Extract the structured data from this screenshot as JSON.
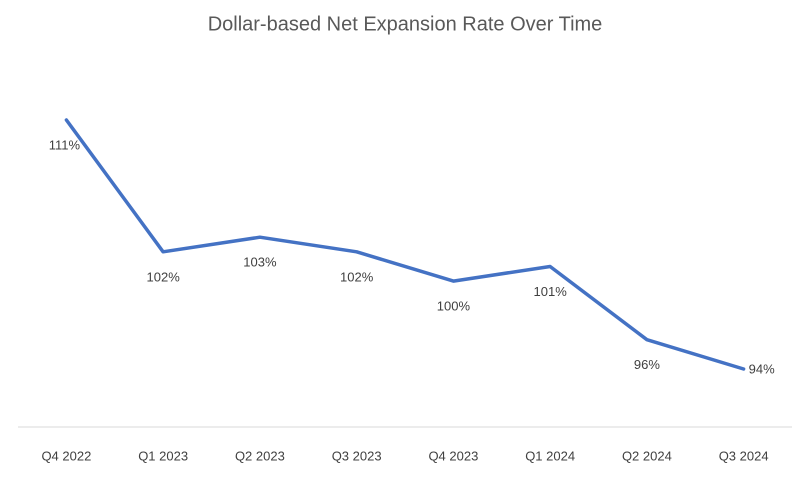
{
  "chart_data": {
    "type": "line",
    "title": "Dollar-based Net Expansion Rate Over Time",
    "categories": [
      "Q4 2022",
      "Q1 2023",
      "Q2 2023",
      "Q3 2023",
      "Q4 2023",
      "Q1 2024",
      "Q2 2024",
      "Q3 2024"
    ],
    "values": [
      111,
      102,
      103,
      102,
      100,
      101,
      96,
      94
    ],
    "value_labels": [
      "111%",
      "102%",
      "103%",
      "102%",
      "100%",
      "101%",
      "96%",
      "94%"
    ],
    "color": "#4472c4"
  }
}
